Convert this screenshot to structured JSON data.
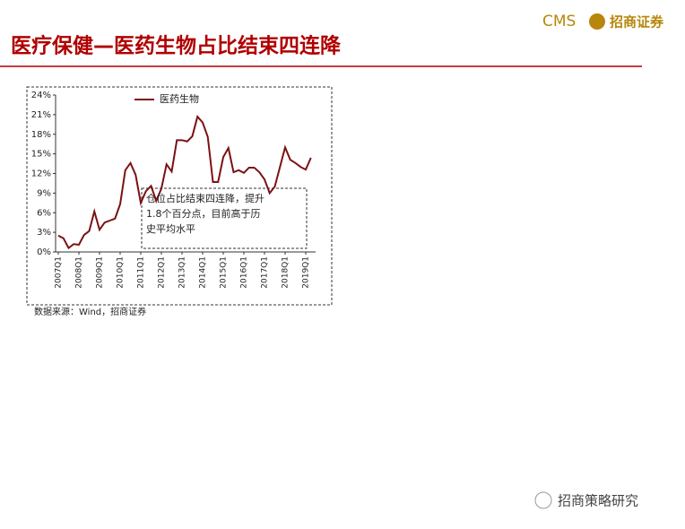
{
  "header": {
    "title": "医疗保健—医药生物占比结束四连降",
    "logo_mark": "CMS",
    "logo_name": "招商证券"
  },
  "chart_data": {
    "type": "line",
    "categories": [
      "2007Q1",
      null,
      null,
      null,
      "2008Q1",
      null,
      null,
      null,
      "2009Q1",
      null,
      null,
      null,
      "2010Q1",
      null,
      null,
      null,
      "2011Q1",
      null,
      null,
      null,
      "2012Q1",
      null,
      null,
      null,
      "2013Q1",
      null,
      null,
      null,
      "2014Q1",
      null,
      null,
      null,
      "2015Q1",
      null,
      null,
      null,
      "2016Q1",
      null,
      null,
      null,
      "2017Q1",
      null,
      null,
      null,
      "2018Q1",
      null,
      null,
      null,
      "2019Q1",
      null
    ],
    "series": [
      {
        "name": "医药生物",
        "color": "#7b1113",
        "values": [
          2.5,
          2.1,
          0.6,
          1.2,
          1.1,
          2.6,
          3.2,
          6.2,
          3.4,
          4.5,
          4.8,
          5.1,
          7.3,
          12.5,
          13.6,
          11.8,
          7.5,
          9.3,
          10.1,
          7.8,
          9.7,
          13.4,
          12.3,
          17.1,
          17.1,
          16.9,
          17.7,
          20.7,
          19.8,
          17.6,
          10.7,
          10.7,
          14.5,
          15.9,
          12.2,
          12.5,
          12.1,
          12.9,
          12.9,
          12.2,
          11.1,
          9.0,
          10.0,
          13.0,
          16.0,
          14.1,
          13.6,
          13.0,
          12.6,
          14.4
        ]
      }
    ],
    "ylim": [
      0,
      24
    ],
    "yticks": [
      {
        "value": 0,
        "label": "0%"
      },
      {
        "value": 3,
        "label": "3%"
      },
      {
        "value": 6,
        "label": "6%"
      },
      {
        "value": 9,
        "label": "9%"
      },
      {
        "value": 12,
        "label": "12%"
      },
      {
        "value": 15,
        "label": "15%"
      },
      {
        "value": 18,
        "label": "18%"
      },
      {
        "value": 21,
        "label": "21%"
      },
      {
        "value": 24,
        "label": "24%"
      }
    ],
    "annotation": [
      "仓位占比结束四连降，提升",
      "1.8个百分点，目前高于历",
      "史平均水平"
    ],
    "source": "数据来源：Wind，招商证券"
  },
  "watermark": "招商策略研究"
}
